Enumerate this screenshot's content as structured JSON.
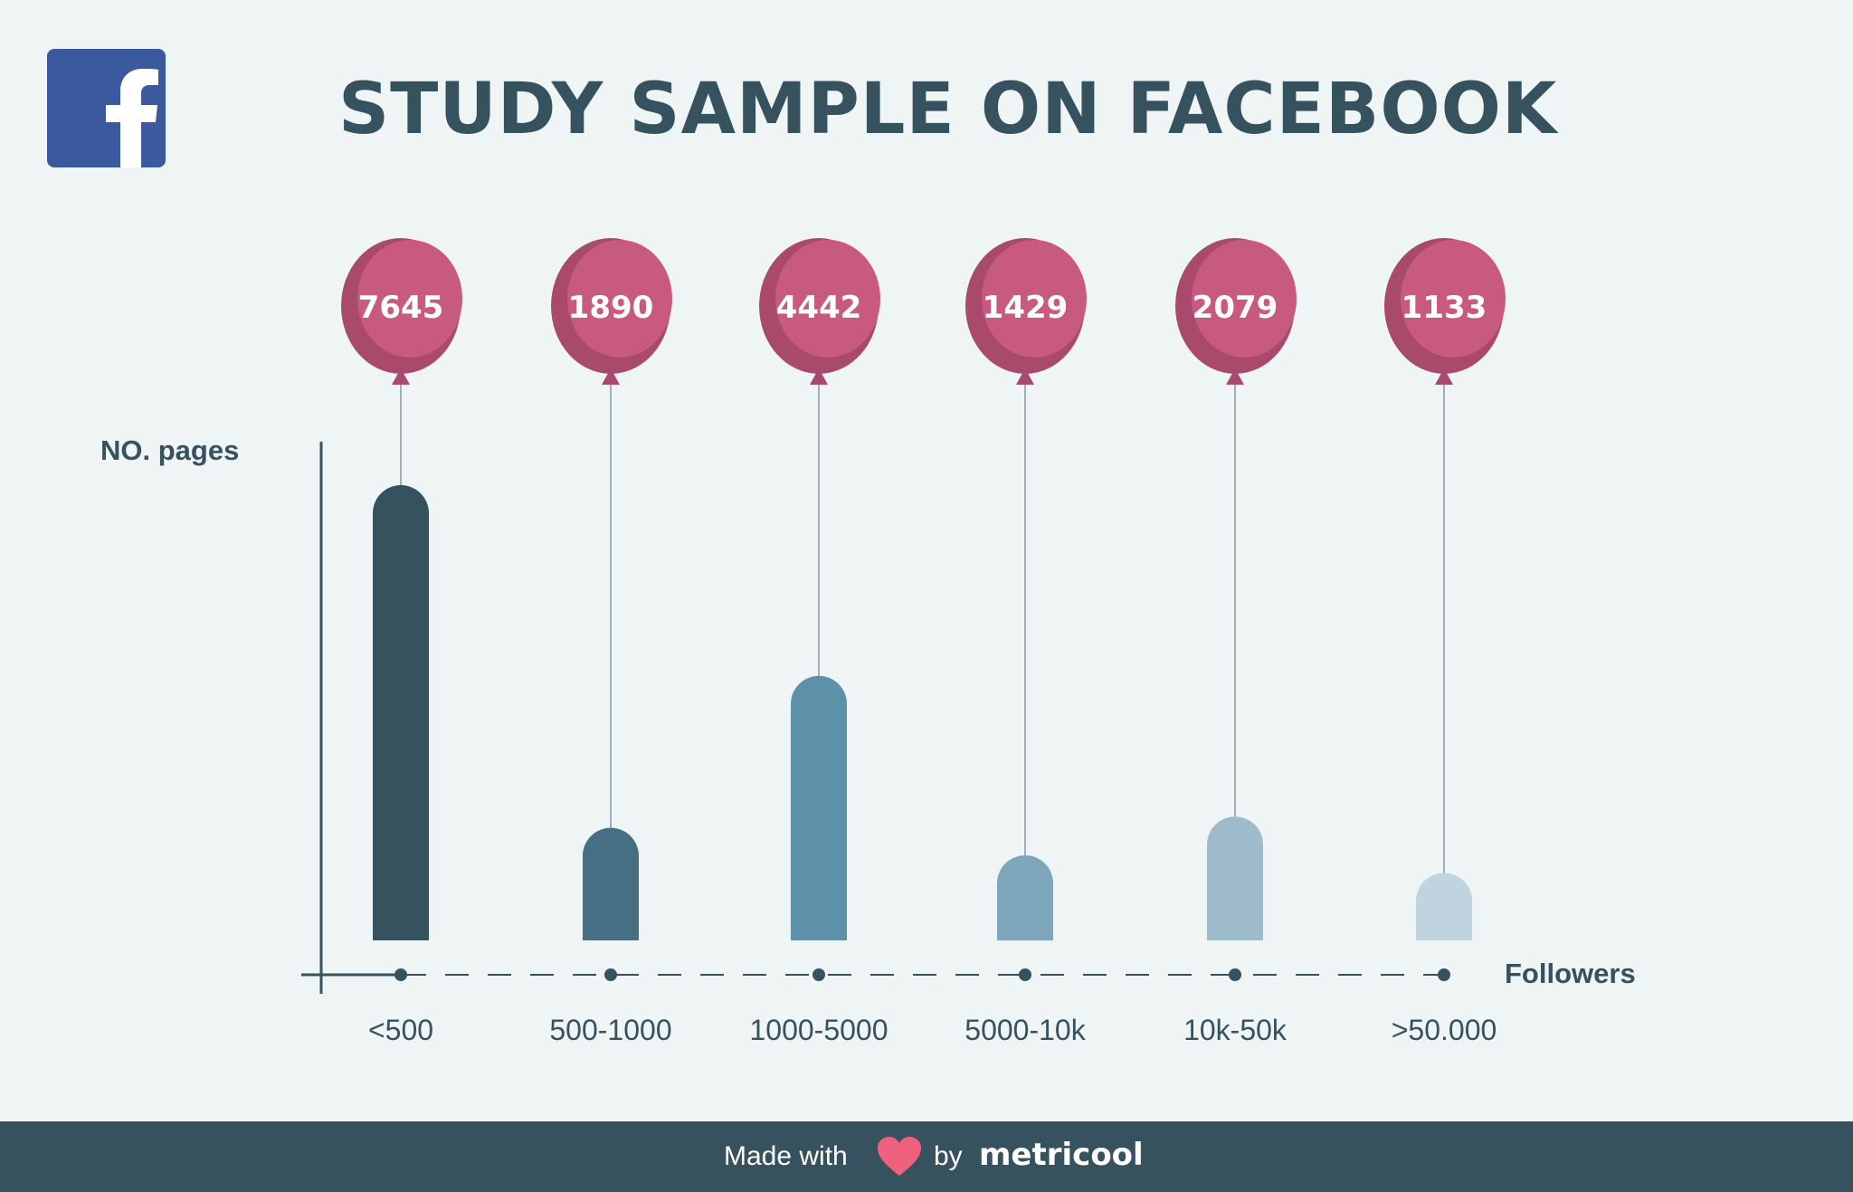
{
  "title": "STUDY SAMPLE ON FACEBOOK",
  "logo_icon": "facebook-icon",
  "colors": {
    "background": "#eff4f5",
    "text": "#36525f",
    "balloon": "#c85a80",
    "balloon_shade": "#a94a6c",
    "footer": "#36525f",
    "heart": "#f0607f",
    "facebook": "#3b5a9e"
  },
  "chart_data": {
    "type": "bar",
    "ylabel": "NO. pages",
    "xlabel": "Followers",
    "categories": [
      "<500",
      "500-1000",
      "1000-5000",
      "5000-10k",
      "10k-50k",
      ">50.000"
    ],
    "values": [
      7645,
      1890,
      4442,
      1429,
      2079,
      1133
    ],
    "ylim": [
      0,
      7645
    ],
    "bar_colors": [
      "#36525f",
      "#466f83",
      "#5d91a9",
      "#7ea6bb",
      "#9dbbca",
      "#bfd4de"
    ],
    "value_labels": [
      "7645",
      "1890",
      "4442",
      "1429",
      "2079",
      "1133"
    ],
    "value_label_style": "balloon",
    "grid": false,
    "legend": "none"
  },
  "footer": {
    "made_with": "Made with",
    "heart_icon": "heart-icon",
    "by": "by",
    "brand": "metricool"
  }
}
